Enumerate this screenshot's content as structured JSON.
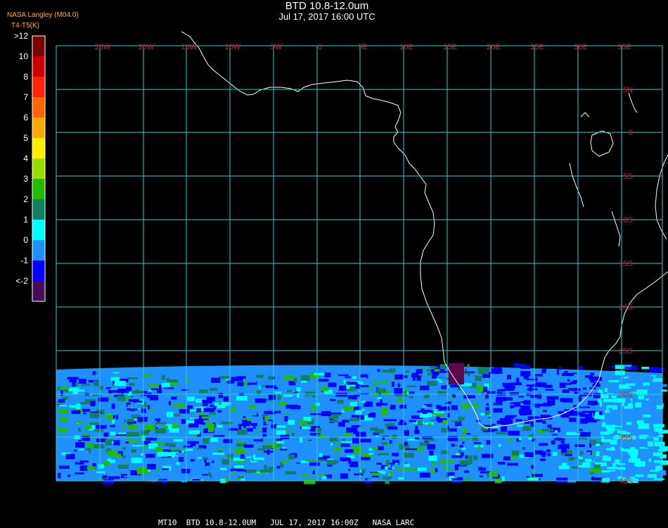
{
  "header": {
    "title": "BTD 10.8-12.0um",
    "subtitle": "Jul 17, 2017 16:00 UTC",
    "credit": "NASA Langley (M04.0)",
    "product_short": "BTD",
    "units": "T4-T5(K)"
  },
  "colorbar": {
    "labels": [
      ">12",
      "10",
      "8",
      "7",
      "6",
      "5",
      "4",
      "3",
      "2",
      "1",
      "0",
      "-1",
      "<-2"
    ],
    "colors": [
      "#7a0000",
      "#cc0000",
      "#ff2200",
      "#ff6600",
      "#ffaa00",
      "#ffee00",
      "#99dd00",
      "#22bb00",
      "#128060",
      "#00ffff",
      "#1e90ff",
      "#0000ff",
      "#4a0a5a"
    ]
  },
  "grid": {
    "lon_labels": [
      "25W",
      "20W",
      "15W",
      "10W",
      "5W",
      "0",
      "5E",
      "10E",
      "15E",
      "20E",
      "25E",
      "30E",
      "35E"
    ],
    "lat_labels": [
      "5N",
      "0",
      "5S",
      "10S",
      "15S",
      "20S",
      "25S",
      "30S",
      "35S",
      "40S"
    ],
    "grid_color": "#33cccc",
    "label_color": "#cc2222"
  },
  "footer": {
    "text": "MT10  BTD 10.8-12.0UM   JUL 17, 2017 16:00Z   NASA LARC"
  }
}
